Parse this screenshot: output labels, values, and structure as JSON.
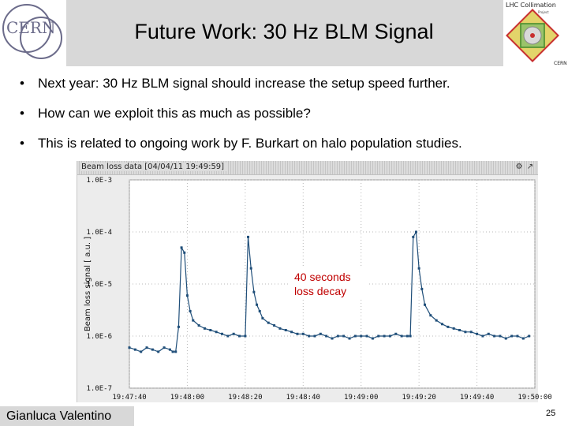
{
  "slide": {
    "title": "Future Work: 30 Hz BLM Signal",
    "bullets": [
      "Next year: 30 Hz BLM signal should increase the setup speed further.",
      "How can we exploit this as much as possible?",
      "This is related to ongoing work by F. Burkart on halo population studies."
    ],
    "bullet_symbol": "•",
    "logos": {
      "left_text": "CERN",
      "right_text_top": "LHC Collimation",
      "right_text_small": "Project",
      "right_text_bottom": "CERN"
    },
    "annotation": [
      "40 seconds",
      "loss decay"
    ],
    "footer_name": "Gianluca Valentino",
    "page_number": "25"
  },
  "chart_data": {
    "type": "line",
    "title": "Beam loss data [04/04/11 19:49:59]",
    "xlabel": "",
    "ylabel": "Beam loss signal [ a.u. ]",
    "y_scale": "log",
    "ylim": [
      1e-07,
      0.001
    ],
    "y_ticks": [
      "1.0E-3",
      "1.0E-4",
      "1.0E-5",
      "1.0E-6",
      "1.0E-7"
    ],
    "x_ticks": [
      "19:47:40",
      "19:48:00",
      "19:48:20",
      "19:48:40",
      "19:49:00",
      "19:49:20",
      "19:49:40",
      "19:50:00"
    ],
    "xlim": [
      "19:47:40",
      "19:50:00"
    ],
    "grid": true,
    "series_color": "#1f4e79",
    "series": [
      {
        "x": [
          "19:47:40",
          "19:47:42",
          "19:47:44",
          "19:47:46",
          "19:47:48",
          "19:47:50",
          "19:47:52",
          "19:47:54",
          "19:47:55",
          "19:47:56",
          "19:47:57",
          "19:47:58",
          "19:47:59",
          "19:48:00",
          "19:48:01",
          "19:48:02",
          "19:48:04",
          "19:48:06",
          "19:48:08",
          "19:48:10",
          "19:48:12",
          "19:48:14",
          "19:48:16",
          "19:48:18",
          "19:48:20",
          "19:48:21",
          "19:48:22",
          "19:48:23",
          "19:48:24",
          "19:48:25",
          "19:48:26",
          "19:48:28",
          "19:48:30",
          "19:48:32",
          "19:48:34",
          "19:48:36",
          "19:48:38",
          "19:48:40",
          "19:48:42",
          "19:48:44",
          "19:48:46",
          "19:48:48",
          "19:48:50",
          "19:48:52",
          "19:48:54",
          "19:48:56",
          "19:48:58",
          "19:49:00",
          "19:49:02",
          "19:49:04",
          "19:49:06",
          "19:49:08",
          "19:49:10",
          "19:49:12",
          "19:49:14",
          "19:49:16",
          "19:49:17",
          "19:49:18",
          "19:49:19",
          "19:49:20",
          "19:49:21",
          "19:49:22",
          "19:49:24",
          "19:49:26",
          "19:49:28",
          "19:49:30",
          "19:49:32",
          "19:49:34",
          "19:49:36",
          "19:49:38",
          "19:49:40",
          "19:49:42",
          "19:49:44",
          "19:49:46",
          "19:49:48",
          "19:49:50",
          "19:49:52",
          "19:49:54",
          "19:49:56",
          "19:49:58"
        ],
        "y": [
          6e-07,
          5.5e-07,
          5e-07,
          6e-07,
          5.5e-07,
          5e-07,
          6e-07,
          5.5e-07,
          5e-07,
          5e-07,
          1.5e-06,
          5e-05,
          4e-05,
          6e-06,
          3e-06,
          2e-06,
          1.6e-06,
          1.4e-06,
          1.3e-06,
          1.2e-06,
          1.1e-06,
          1e-06,
          1.1e-06,
          1e-06,
          1e-06,
          8e-05,
          2e-05,
          7e-06,
          4e-06,
          3e-06,
          2.2e-06,
          1.8e-06,
          1.6e-06,
          1.4e-06,
          1.3e-06,
          1.2e-06,
          1.1e-06,
          1.1e-06,
          1e-06,
          1e-06,
          1.1e-06,
          1e-06,
          9e-07,
          1e-06,
          1e-06,
          9e-07,
          1e-06,
          1e-06,
          1e-06,
          9e-07,
          1e-06,
          1e-06,
          1e-06,
          1.1e-06,
          1e-06,
          1e-06,
          1e-06,
          8e-05,
          0.0001,
          2e-05,
          8e-06,
          4e-06,
          2.5e-06,
          2e-06,
          1.7e-06,
          1.5e-06,
          1.4e-06,
          1.3e-06,
          1.2e-06,
          1.2e-06,
          1.1e-06,
          1e-06,
          1.1e-06,
          1e-06,
          1e-06,
          9e-07,
          1e-06,
          1e-06,
          9e-07,
          1e-06
        ]
      }
    ]
  }
}
